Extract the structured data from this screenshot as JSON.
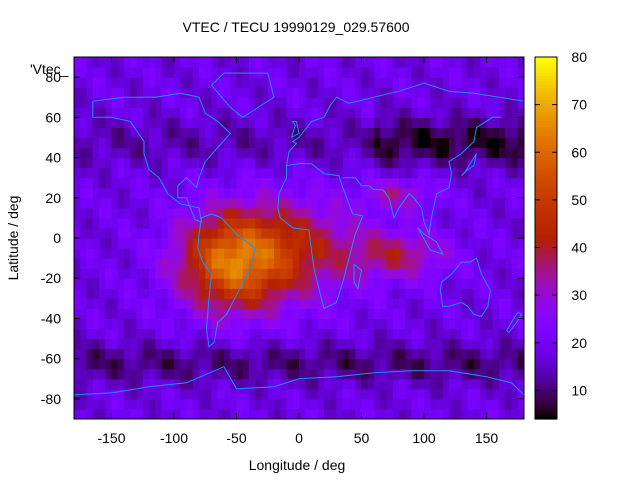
{
  "chart_data": {
    "type": "heatmap",
    "title": "VTEC / TECU 19990129_029.57600",
    "xlabel": "Longitude / deg",
    "ylabel": "Latitude / deg",
    "xlim": [
      -180,
      180
    ],
    "ylim": [
      -90,
      90
    ],
    "x_ticks": [
      -150,
      -100,
      -50,
      0,
      50,
      100,
      150
    ],
    "y_ticks": [
      -80,
      -60,
      -40,
      -20,
      0,
      20,
      40,
      60,
      80
    ],
    "colorbar": {
      "min": 4,
      "max": 80,
      "ticks": [
        10,
        20,
        30,
        40,
        50,
        60,
        70,
        80
      ]
    },
    "series_label": "'Vtec_",
    "colormap": "gnuplot rgbformulae 7,5,15 (black-purple-red-orange-yellow)",
    "peak_region": {
      "lon": -60,
      "lat": -10,
      "value_tecu": 75
    },
    "colors": {
      "coastline": "#1e90ff",
      "axis": "#000000"
    }
  }
}
